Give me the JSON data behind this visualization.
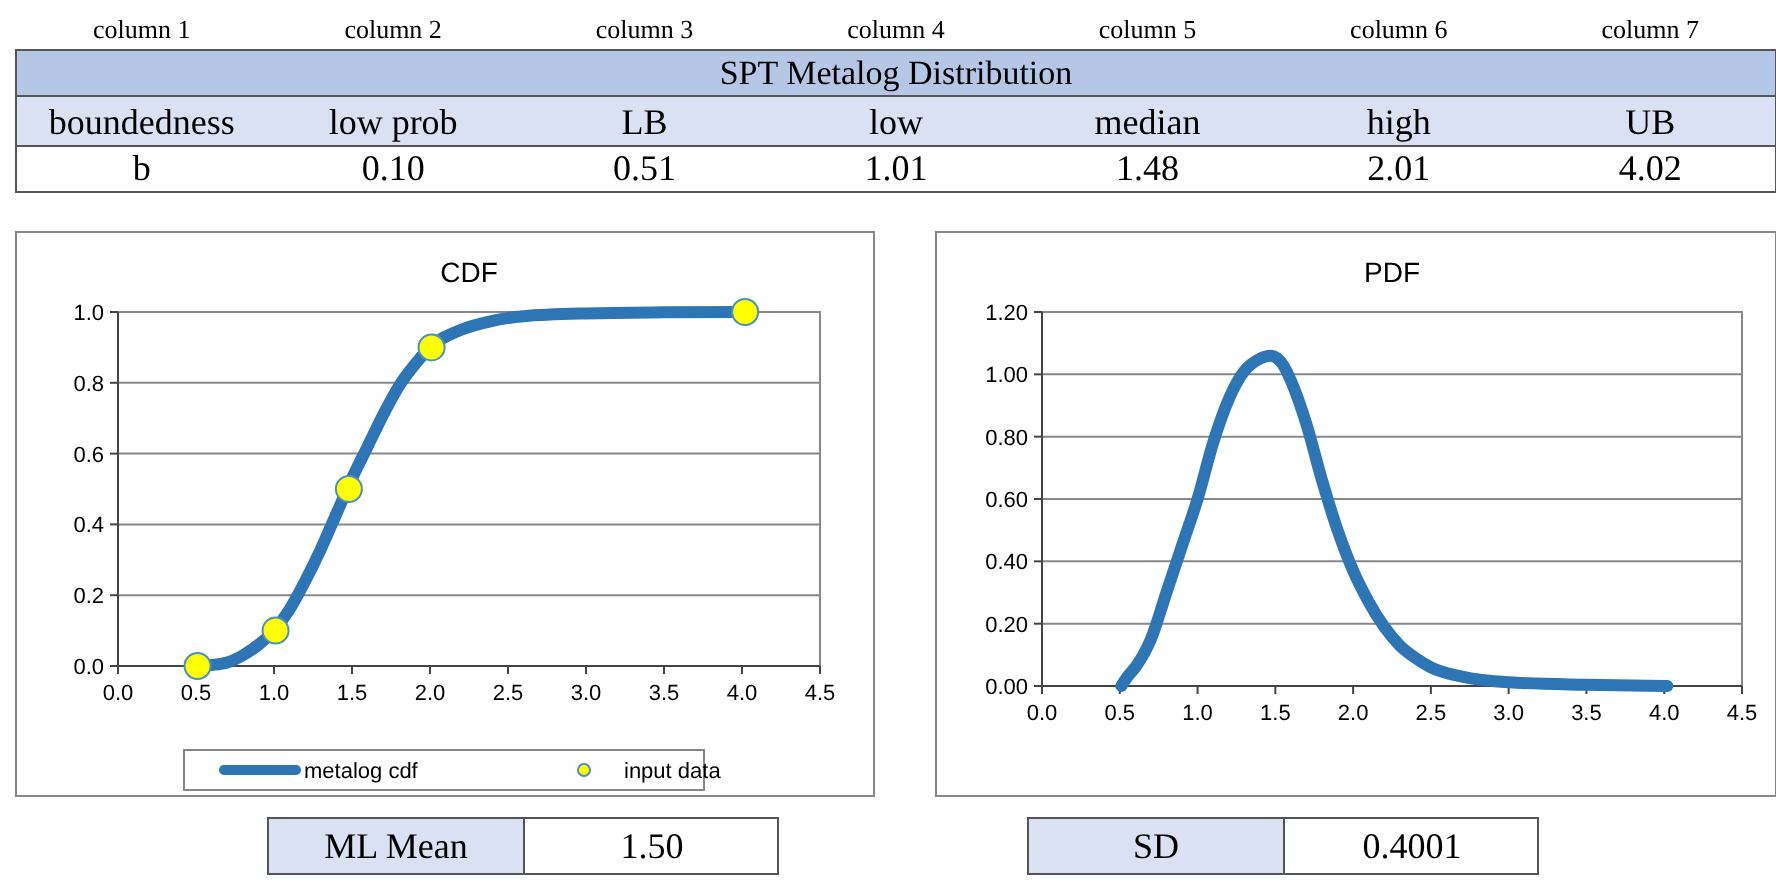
{
  "chart_data": [
    {
      "type": "other",
      "title": "SPT Metalog Distribution",
      "annotations": [
        "column 1",
        "column 2",
        "column 3",
        "column 4",
        "column 5",
        "column 6",
        "column 7",
        "boundedness",
        "low prob",
        "LB",
        "low",
        "median",
        "high",
        "UB",
        "b",
        "0.10",
        "0.51",
        "1.01",
        "1.48",
        "2.01",
        "4.02"
      ]
    },
    {
      "type": "line",
      "title": "CDF",
      "xlim": [
        0,
        4.5
      ],
      "ylim": [
        0,
        1
      ],
      "xticks": [
        {
          "value": 0,
          "label": "0.0"
        },
        {
          "value": 0.5,
          "label": "0.5"
        },
        {
          "value": 1,
          "label": "1.0"
        },
        {
          "value": 1.5,
          "label": "1.5"
        },
        {
          "value": 2,
          "label": "2.0"
        },
        {
          "value": 2.5,
          "label": "2.5"
        },
        {
          "value": 3,
          "label": "3.0"
        },
        {
          "value": 3.5,
          "label": "3.5"
        },
        {
          "value": 4,
          "label": "4.0"
        },
        {
          "value": 4.5,
          "label": "4.5"
        }
      ],
      "yticks": [
        {
          "value": 0,
          "label": "0.0"
        },
        {
          "value": 0.2,
          "label": "0.2"
        },
        {
          "value": 0.4,
          "label": "0.4"
        },
        {
          "value": 0.6,
          "label": "0.6"
        },
        {
          "value": 0.8,
          "label": "0.8"
        },
        {
          "value": 1,
          "label": "1.0"
        }
      ],
      "grid": "y",
      "legend": "bottom",
      "series": [
        {
          "name": "metalog cdf",
          "type": "line",
          "color": "#2e75b6",
          "marker": "none",
          "x": [
            0.51,
            0.6,
            0.7,
            0.8,
            0.9,
            1.0,
            1.1,
            1.2,
            1.3,
            1.4,
            1.5,
            1.6,
            1.7,
            1.8,
            1.9,
            2.0,
            2.2,
            2.4,
            2.6,
            3.0,
            3.5,
            4.02
          ],
          "values": [
            0,
            0.003,
            0.01,
            0.03,
            0.06,
            0.1,
            0.16,
            0.24,
            0.33,
            0.43,
            0.53,
            0.62,
            0.71,
            0.79,
            0.85,
            0.9,
            0.95,
            0.975,
            0.988,
            0.996,
            0.999,
            1.0
          ]
        },
        {
          "name": "input data",
          "type": "scatter",
          "color": "#ffff00",
          "marker": "circle",
          "x": [
            0.51,
            1.01,
            1.48,
            2.01,
            4.02
          ],
          "values": [
            0,
            0.1,
            0.5,
            0.9,
            1.0
          ]
        }
      ]
    },
    {
      "type": "line",
      "title": "PDF",
      "xlim": [
        0,
        4.5
      ],
      "ylim": [
        0,
        1.2
      ],
      "xticks": [
        {
          "value": 0,
          "label": "0.0"
        },
        {
          "value": 0.5,
          "label": "0.5"
        },
        {
          "value": 1,
          "label": "1.0"
        },
        {
          "value": 1.5,
          "label": "1.5"
        },
        {
          "value": 2,
          "label": "2.0"
        },
        {
          "value": 2.5,
          "label": "2.5"
        },
        {
          "value": 3,
          "label": "3.0"
        },
        {
          "value": 3.5,
          "label": "3.5"
        },
        {
          "value": 4,
          "label": "4.0"
        },
        {
          "value": 4.5,
          "label": "4.5"
        }
      ],
      "yticks": [
        {
          "value": 0,
          "label": "0.00"
        },
        {
          "value": 0.2,
          "label": "0.20"
        },
        {
          "value": 0.4,
          "label": "0.40"
        },
        {
          "value": 0.6,
          "label": "0.60"
        },
        {
          "value": 0.8,
          "label": "0.80"
        },
        {
          "value": 1,
          "label": "1.00"
        },
        {
          "value": 1.2,
          "label": "1.20"
        }
      ],
      "grid": "y",
      "marker": "none",
      "series": [
        {
          "color": "#2e75b6",
          "x": [
            0.51,
            0.55,
            0.6,
            0.7,
            0.8,
            0.9,
            1.0,
            1.1,
            1.2,
            1.3,
            1.4,
            1.47,
            1.55,
            1.6,
            1.7,
            1.8,
            1.9,
            2.0,
            2.1,
            2.2,
            2.3,
            2.4,
            2.5,
            2.7,
            3.0,
            3.5,
            4.02
          ],
          "values": [
            0,
            0.03,
            0.06,
            0.15,
            0.3,
            0.45,
            0.6,
            0.78,
            0.92,
            1.01,
            1.05,
            1.06,
            1.03,
            0.98,
            0.84,
            0.66,
            0.5,
            0.37,
            0.27,
            0.19,
            0.13,
            0.09,
            0.06,
            0.03,
            0.012,
            0.004,
            0
          ]
        }
      ]
    },
    {
      "type": "other",
      "annotations": [
        "ML Mean",
        "1.50",
        "SD",
        "0.4001"
      ]
    }
  ]
}
